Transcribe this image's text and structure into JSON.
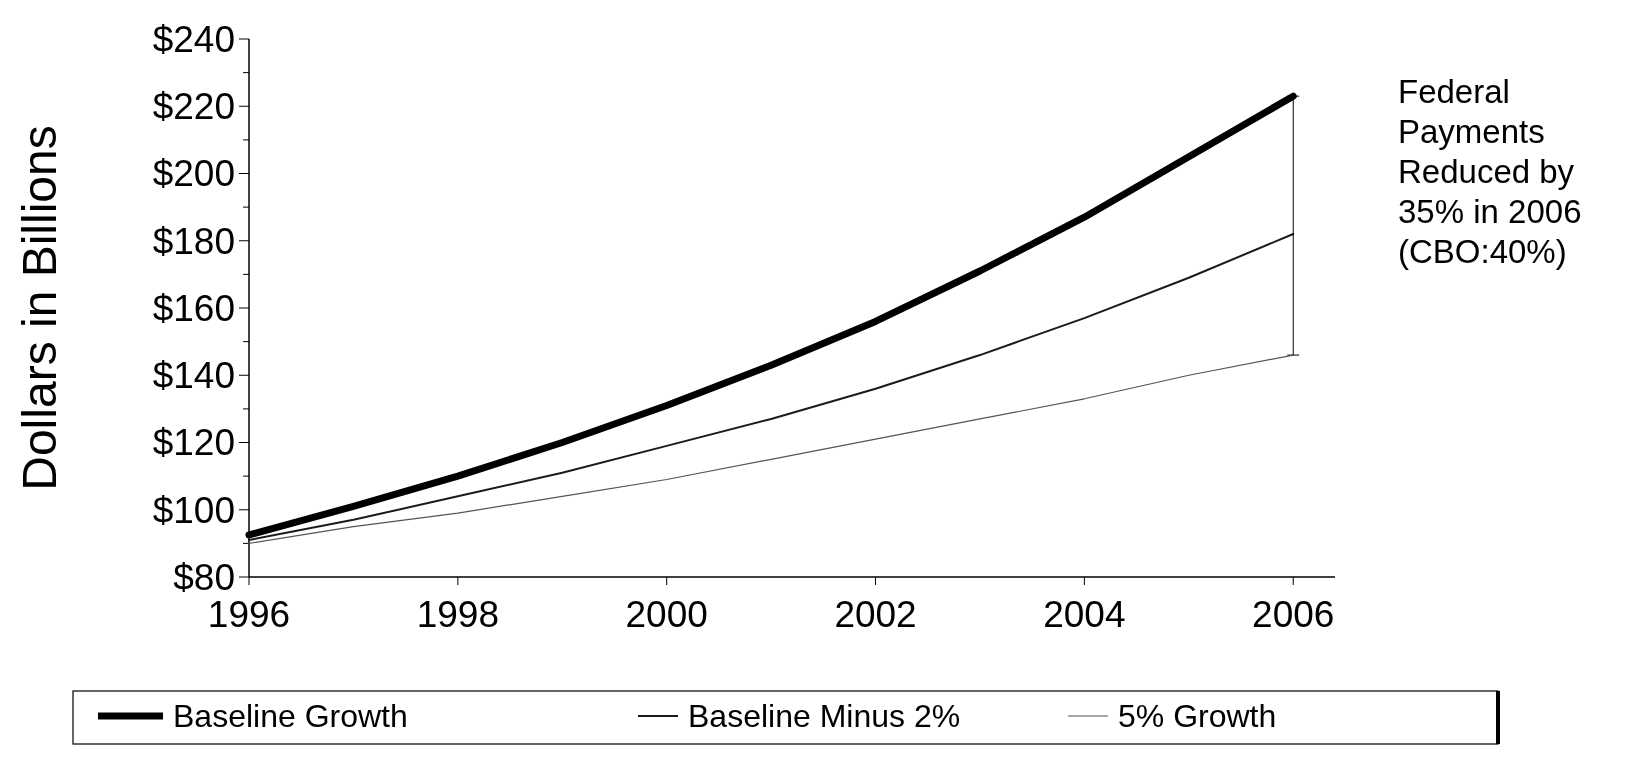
{
  "chart_data": {
    "type": "line",
    "ylabel": "Dollars in Billions",
    "x": [
      1996,
      1997,
      1998,
      1999,
      2000,
      2001,
      2002,
      2003,
      2004,
      2005,
      2006
    ],
    "series": [
      {
        "name": "Baseline Growth",
        "color": "#000000",
        "values": [
          92.5,
          101,
          110,
          120,
          131,
          143,
          156,
          171,
          187,
          205,
          223
        ]
      },
      {
        "name": "Baseline Minus 2%",
        "color": "#1a1a1a",
        "values": [
          91,
          97,
          104,
          111,
          119,
          127,
          136,
          146,
          157,
          169,
          182
        ],
        "errors": [
          null,
          null,
          null,
          null,
          null,
          null,
          null,
          null,
          null,
          null,
          [
            146,
            223
          ]
        ]
      },
      {
        "name": "5% Growth",
        "color": "#555555",
        "values": [
          90,
          95,
          99,
          104,
          109,
          115,
          121,
          127,
          133,
          140,
          146
        ]
      }
    ],
    "xlim": [
      1996,
      2006.4
    ],
    "xticks": [
      1996,
      1998,
      2000,
      2002,
      2004,
      2006
    ],
    "ylim": [
      80,
      240
    ],
    "yticks": [
      {
        "value": 80,
        "label": "$80"
      },
      {
        "value": 100,
        "label": "$100"
      },
      {
        "value": 120,
        "label": "$120"
      },
      {
        "value": 140,
        "label": "$140"
      },
      {
        "value": 160,
        "label": "$160"
      },
      {
        "value": 180,
        "label": "$180"
      },
      {
        "value": 200,
        "label": "$200"
      },
      {
        "value": 220,
        "label": "$220"
      },
      {
        "value": 240,
        "label": "$240"
      }
    ],
    "annotations": [
      "Federal Payments Reduced by 35% in 2006 (CBO:40%)"
    ],
    "grid": false,
    "legend": "bottom",
    "line_style": "solid",
    "marker": "none"
  }
}
